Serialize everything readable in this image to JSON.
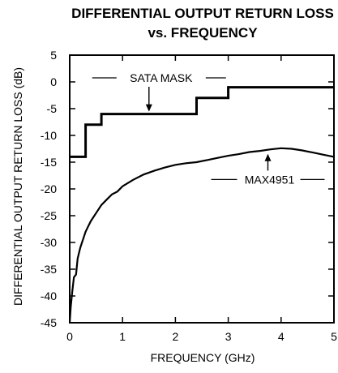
{
  "chart_data": {
    "type": "line",
    "title_line1": "DIFFERENTIAL OUTPUT RETURN LOSS",
    "title_line2": "vs. FREQUENCY",
    "xlabel": "FREQUENCY (GHz)",
    "ylabel": "DIFFERENTIAL OUTPUT RETURN LOSS (dB)",
    "xlim": [
      0,
      5
    ],
    "ylim": [
      -45,
      5
    ],
    "xticks": [
      0,
      1,
      2,
      3,
      4,
      5
    ],
    "yticks": [
      5,
      0,
      -5,
      -10,
      -15,
      -20,
      -25,
      -30,
      -35,
      -40,
      -45
    ],
    "grid": false,
    "series": [
      {
        "name": "SATA MASK",
        "x": [
          0,
          0.3,
          0.3,
          0.6,
          0.6,
          2.4,
          2.4,
          3.0,
          3.0,
          5.0
        ],
        "y": [
          -14,
          -14,
          -8,
          -8,
          -6,
          -6,
          -3,
          -3,
          -1,
          -1
        ]
      },
      {
        "name": "MAX4951",
        "x": [
          0.0,
          0.02,
          0.05,
          0.08,
          0.12,
          0.15,
          0.2,
          0.25,
          0.3,
          0.35,
          0.4,
          0.5,
          0.6,
          0.7,
          0.8,
          0.9,
          1.0,
          1.2,
          1.4,
          1.6,
          1.8,
          2.0,
          2.2,
          2.4,
          2.6,
          2.8,
          3.0,
          3.2,
          3.4,
          3.6,
          3.8,
          4.0,
          4.2,
          4.4,
          4.6,
          4.8,
          5.0
        ],
        "y": [
          -45,
          -42,
          -39,
          -36.5,
          -36,
          -33,
          -31,
          -29.5,
          -28,
          -27,
          -26,
          -24.5,
          -23,
          -22,
          -21,
          -20.5,
          -19.5,
          -18.3,
          -17.3,
          -16.6,
          -16.0,
          -15.5,
          -15.2,
          -15.0,
          -14.6,
          -14.2,
          -13.8,
          -13.5,
          -13.1,
          -12.9,
          -12.6,
          -12.4,
          -12.5,
          -12.8,
          -13.2,
          -13.6,
          -14.0
        ]
      }
    ],
    "annotations": [
      {
        "text": "SATA MASK",
        "target_x": 1.5,
        "target_y": -6
      },
      {
        "text": "MAX4951",
        "target_x": 3.75,
        "target_y": -13
      }
    ]
  }
}
